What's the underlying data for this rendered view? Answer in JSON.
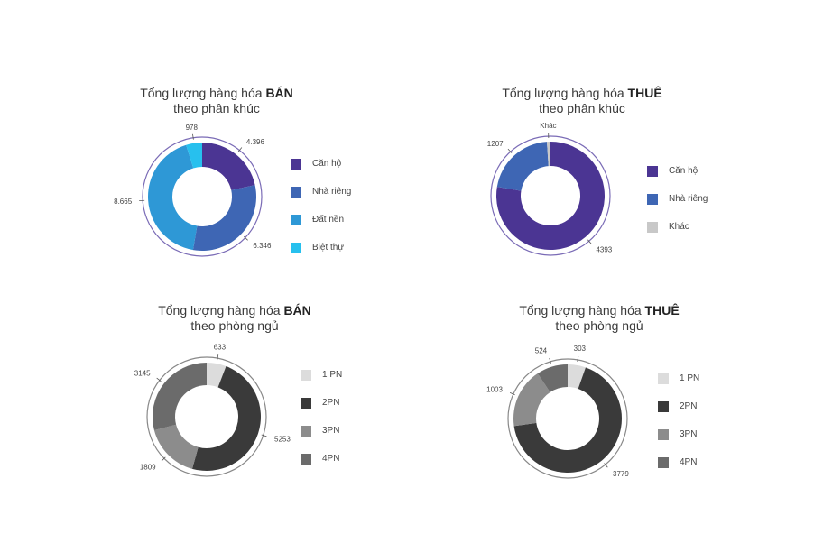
{
  "chart_data": [
    {
      "type": "pie",
      "title_prefix": "Tổng lượng hàng hóa",
      "title_bold": "BÁN",
      "subtitle": "theo phân khúc",
      "categories": [
        "Căn hộ",
        "Nhà riêng",
        "Đất nền",
        "Biệt thự"
      ],
      "value_labels": [
        "4.396",
        "6.346",
        "8.665",
        "978"
      ],
      "values": [
        4396,
        6346,
        8665,
        978
      ],
      "colors": [
        "#4b3593",
        "#3e66b4",
        "#2e98d6",
        "#27c0ee"
      ]
    },
    {
      "type": "pie",
      "title_prefix": "Tổng lượng hàng hóa",
      "title_bold": "THUÊ",
      "subtitle": "theo phân khúc",
      "categories": [
        "Căn hộ",
        "Nhà riêng",
        "Khác"
      ],
      "value_labels": [
        "4393",
        "1207",
        "Khác"
      ],
      "values": [
        4393,
        1207,
        60
      ],
      "colors": [
        "#4b3593",
        "#3e66b4",
        "#c8c8c8"
      ]
    },
    {
      "type": "pie",
      "title_prefix": "Tổng lượng hàng hóa",
      "title_bold": "BÁN",
      "subtitle": "theo phòng ngủ",
      "categories": [
        "1 PN",
        "2PN",
        "3PN",
        "4PN"
      ],
      "value_labels": [
        "633",
        "5253",
        "1809",
        "3145"
      ],
      "values": [
        633,
        5253,
        1809,
        3145
      ],
      "colors": [
        "#dcdcdc",
        "#3a3a3a",
        "#8c8c8c",
        "#6b6b6b"
      ]
    },
    {
      "type": "pie",
      "title_prefix": "Tổng lượng hàng hóa",
      "title_bold": "THUÊ",
      "subtitle": "theo phòng ngủ",
      "categories": [
        "1 PN",
        "2PN",
        "3PN",
        "4PN"
      ],
      "value_labels": [
        "303",
        "3779",
        "1003",
        "524"
      ],
      "values": [
        303,
        3779,
        1003,
        524
      ],
      "colors": [
        "#dcdcdc",
        "#3a3a3a",
        "#8c8c8c",
        "#6b6b6b"
      ]
    }
  ]
}
